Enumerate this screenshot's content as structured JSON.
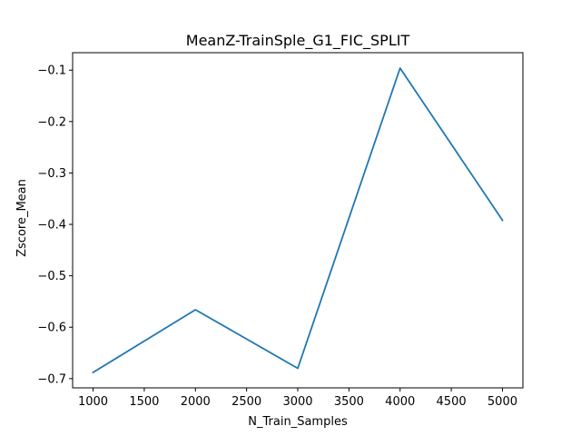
{
  "chart_data": {
    "type": "line",
    "title": "MeanZ-TrainSple_G1_FIC_SPLIT",
    "xlabel": "N_Train_Samples",
    "ylabel": "Zscore_Mean",
    "x": [
      1000,
      2000,
      3000,
      4000,
      5000
    ],
    "series": [
      {
        "values": [
          -0.688,
          -0.566,
          -0.68,
          -0.096,
          -0.392
        ],
        "color": "#1f77b4"
      }
    ],
    "xlim": [
      800,
      5200
    ],
    "ylim": [
      -0.718,
      -0.066
    ],
    "xticks": [
      1000,
      1500,
      2000,
      2500,
      3000,
      3500,
      4000,
      4500,
      5000
    ],
    "yticks": [
      -0.7,
      -0.6,
      -0.5,
      -0.4,
      -0.3,
      -0.2,
      -0.1
    ],
    "xtick_labels": [
      "1000",
      "1500",
      "2000",
      "2500",
      "3000",
      "3500",
      "4000",
      "4500",
      "5000"
    ],
    "ytick_labels": [
      "−0.7",
      "−0.6",
      "−0.5",
      "−0.4",
      "−0.3",
      "−0.2",
      "−0.1"
    ],
    "grid": false,
    "legend": "none"
  }
}
